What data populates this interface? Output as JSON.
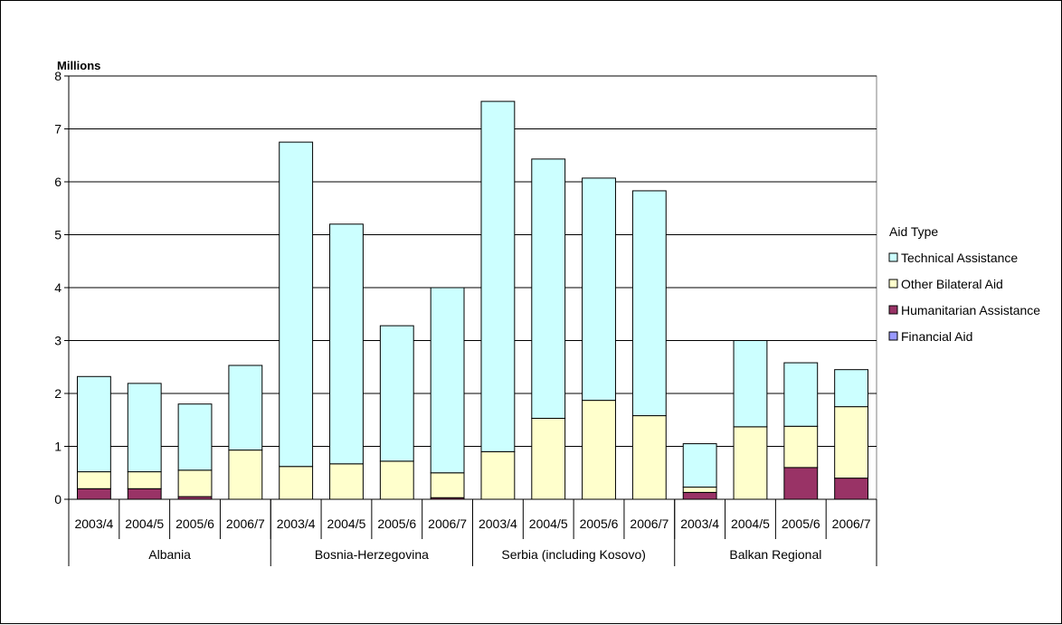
{
  "chart_data": {
    "type": "bar",
    "stacked": true,
    "unit_label": "Millions",
    "ylim": [
      0,
      8
    ],
    "yticks": [
      0,
      1,
      2,
      3,
      4,
      5,
      6,
      7,
      8
    ],
    "grid": true,
    "legend_title": "Aid Type",
    "legend_position": "right",
    "groups": [
      {
        "label": "Albania",
        "categories": [
          "2003/4",
          "2004/5",
          "2005/6",
          "2006/7"
        ]
      },
      {
        "label": "Bosnia-Herzegovina",
        "categories": [
          "2003/4",
          "2004/5",
          "2005/6",
          "2006/7"
        ]
      },
      {
        "label": "Serbia (including Kosovo)",
        "categories": [
          "2003/4",
          "2004/5",
          "2005/6",
          "2006/7"
        ]
      },
      {
        "label": "Balkan Regional",
        "categories": [
          "2003/4",
          "2004/5",
          "2005/6",
          "2006/7"
        ]
      }
    ],
    "series": [
      {
        "name": "Financial Aid",
        "color": "#9999ff",
        "values": [
          0,
          0,
          0,
          0,
          0,
          0,
          0,
          0,
          0,
          0,
          0,
          0,
          0,
          0,
          0,
          0
        ]
      },
      {
        "name": "Humanitarian Assistance",
        "color": "#993366",
        "values": [
          0.2,
          0.2,
          0.05,
          0,
          0,
          0,
          0,
          0.03,
          0,
          0,
          0,
          0,
          0.13,
          0,
          0.6,
          0.4
        ]
      },
      {
        "name": "Other Bilateral Aid",
        "color": "#ffffcc",
        "values": [
          0.32,
          0.32,
          0.5,
          0.93,
          0.62,
          0.67,
          0.72,
          0.47,
          0.9,
          1.53,
          1.87,
          1.58,
          0.1,
          1.37,
          0.78,
          1.35
        ]
      },
      {
        "name": "Technical Assistance",
        "color": "#ccffff",
        "values": [
          1.8,
          1.67,
          1.25,
          1.6,
          6.13,
          4.53,
          2.56,
          3.5,
          6.62,
          4.9,
          4.2,
          4.25,
          0.82,
          1.63,
          1.2,
          0.7
        ]
      }
    ]
  }
}
